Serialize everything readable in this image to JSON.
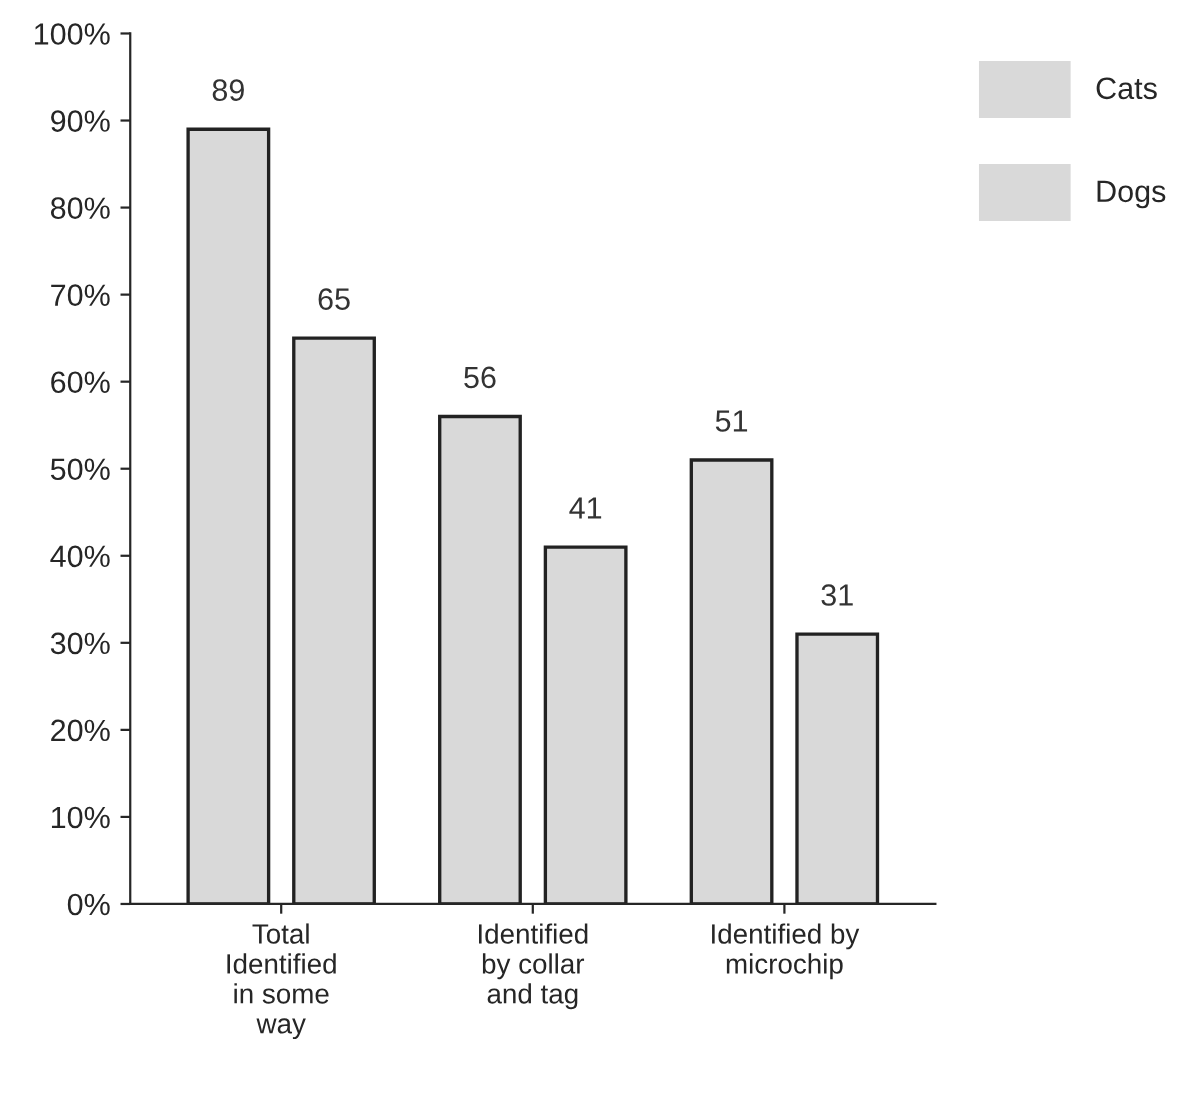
{
  "chart_data": {
    "type": "bar",
    "categories": [
      "Total\nIdentified\nin some\nway",
      "Identified\nby collar\nand tag",
      "Identified by\nmicrochip"
    ],
    "series": [
      {
        "name": "Cats",
        "color": "#d9d9d9",
        "values": [
          89,
          56,
          51
        ]
      },
      {
        "name": "Dogs",
        "color": "#d9d9d9",
        "values": [
          65,
          41,
          31
        ]
      }
    ],
    "ylim": [
      0,
      100
    ],
    "yticks": [
      {
        "value": 0,
        "label": "0%"
      },
      {
        "value": 10,
        "label": "10%"
      },
      {
        "value": 20,
        "label": "20%"
      },
      {
        "value": 30,
        "label": "30%"
      },
      {
        "value": 40,
        "label": "40%"
      },
      {
        "value": 50,
        "label": "50%"
      },
      {
        "value": 60,
        "label": "60%"
      },
      {
        "value": 70,
        "label": "70%"
      },
      {
        "value": 80,
        "label": "80%"
      },
      {
        "value": 90,
        "label": "90%"
      },
      {
        "value": 100,
        "label": "100%"
      }
    ],
    "data_labels": true,
    "legend": "top right",
    "grid": false
  }
}
